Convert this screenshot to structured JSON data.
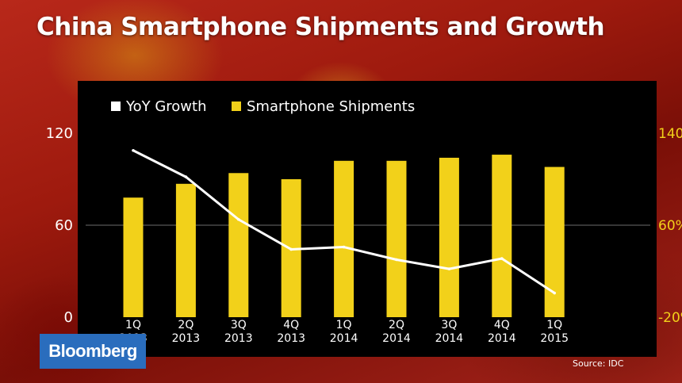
{
  "title": "China Smartphone Shipments and Growth",
  "brand": "Bloomberg",
  "source": "Source: IDC",
  "colors": {
    "bar": "#f2d11a",
    "line": "#ffffff",
    "panel": "#000000",
    "axis_right": "#f2d11a"
  },
  "chart_data": {
    "type": "bar",
    "title": "China Smartphone Shipments and Growth",
    "legend": [
      {
        "label": "YoY Growth",
        "color": "#ffffff"
      },
      {
        "label": "Smartphone Shipments",
        "color": "#f2d11a"
      }
    ],
    "legend_position": "top-left",
    "categories": [
      [
        "1Q",
        "2013"
      ],
      [
        "2Q",
        "2013"
      ],
      [
        "3Q",
        "2013"
      ],
      [
        "4Q",
        "2013"
      ],
      [
        "1Q",
        "2014"
      ],
      [
        "2Q",
        "2014"
      ],
      [
        "3Q",
        "2014"
      ],
      [
        "4Q",
        "2014"
      ],
      [
        "1Q",
        "2015"
      ]
    ],
    "left_axis": {
      "ticks": [
        "0",
        "60",
        "120"
      ],
      "values": [
        0,
        60,
        120
      ],
      "ylim": [
        0,
        120
      ]
    },
    "right_axis": {
      "ticks": [
        "-20%",
        "60%",
        "140%"
      ],
      "values": [
        -20,
        60,
        140
      ],
      "ylim": [
        -20,
        140
      ]
    },
    "grid": {
      "horizontal": [
        60
      ]
    },
    "series": [
      {
        "name": "Smartphone Shipments",
        "type": "bar",
        "axis": "left",
        "values": [
          78,
          87,
          94,
          90,
          102,
          102,
          104,
          106,
          98
        ]
      },
      {
        "name": "YoY Growth",
        "type": "line",
        "axis": "right",
        "values": [
          125,
          102,
          65,
          39,
          41,
          30,
          22,
          31,
          1
        ]
      }
    ]
  }
}
